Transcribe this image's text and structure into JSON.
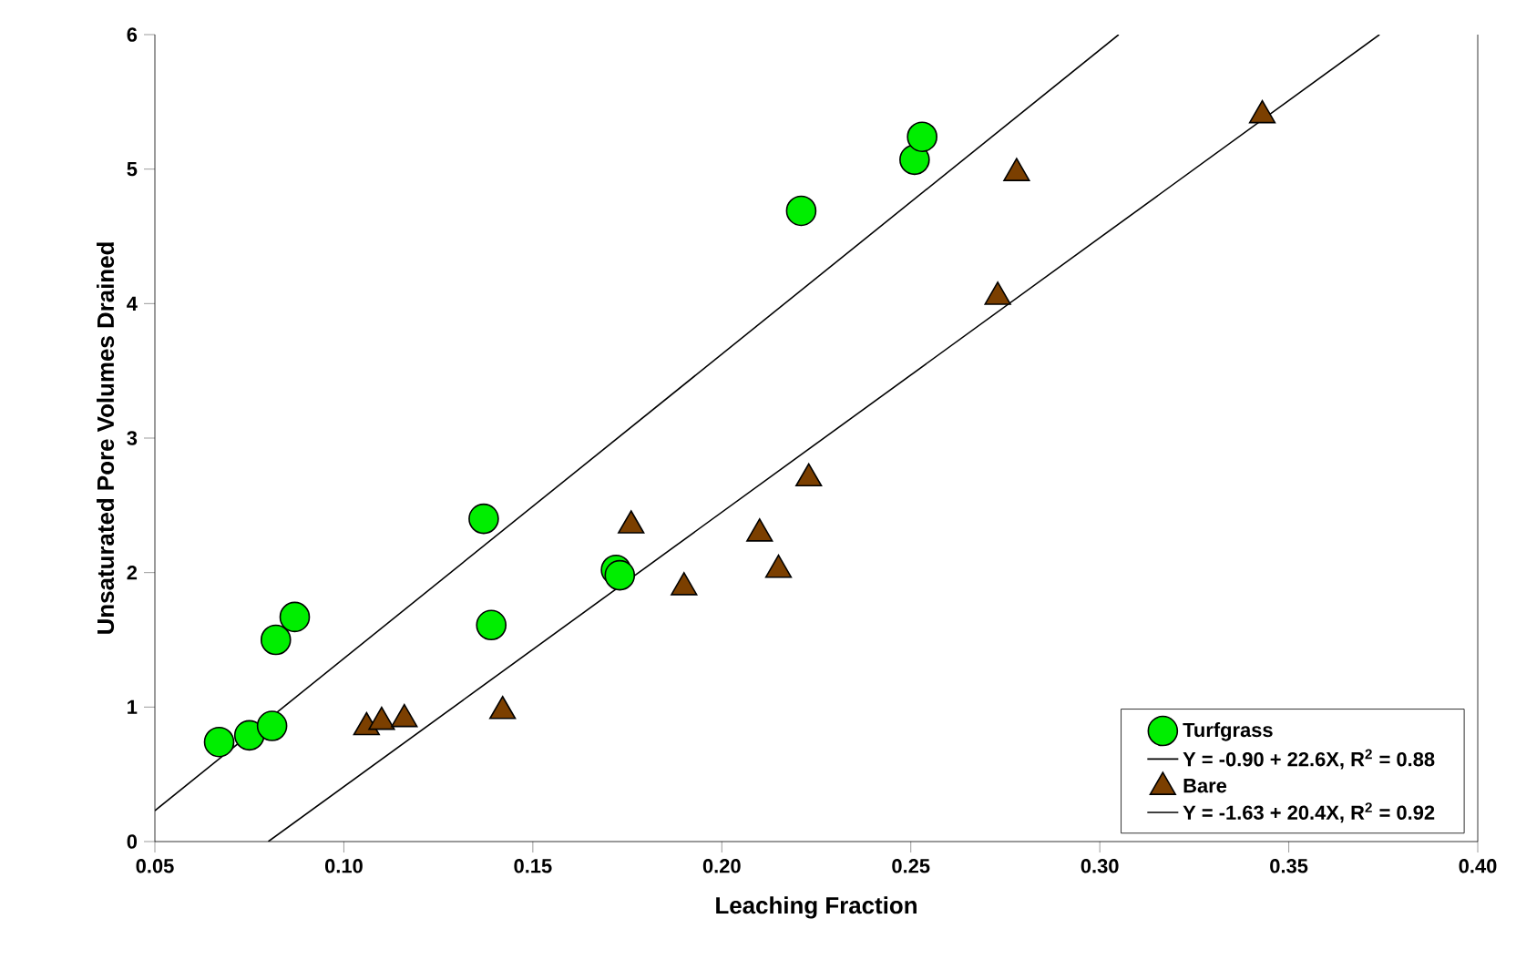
{
  "chart_data": {
    "type": "scatter",
    "xlabel": "Leaching Fraction",
    "ylabel": "Unsaturated Pore Volumes Drained",
    "xlim": [
      0.05,
      0.4
    ],
    "ylim": [
      0,
      6
    ],
    "xticks": [
      {
        "value": 0.05,
        "label": "0.05"
      },
      {
        "value": 0.1,
        "label": "0.10"
      },
      {
        "value": 0.15,
        "label": "0.15"
      },
      {
        "value": 0.2,
        "label": "0.20"
      },
      {
        "value": 0.25,
        "label": "0.25"
      },
      {
        "value": 0.3,
        "label": "0.30"
      },
      {
        "value": 0.35,
        "label": "0.35"
      },
      {
        "value": 0.4,
        "label": "0.40"
      }
    ],
    "yticks": [
      0,
      1,
      2,
      3,
      4,
      5,
      6
    ],
    "grid": false,
    "legend": "bottom right",
    "series": [
      {
        "name": "Turfgrass",
        "marker": "circle",
        "color": "#00ee00",
        "x": [
          0.067,
          0.075,
          0.081,
          0.082,
          0.087,
          0.139,
          0.137,
          0.172,
          0.173,
          0.221,
          0.251,
          0.253
        ],
        "values": [
          0.74,
          0.79,
          0.86,
          1.5,
          1.67,
          1.61,
          2.4,
          2.02,
          1.98,
          4.69,
          5.07,
          5.24
        ]
      },
      {
        "name": "Y = -0.90 + 22.6X, R$^{2}$ = 0.88",
        "type": "line",
        "marker": "none",
        "color": "#000000",
        "x": [
          0.05,
          0.305
        ],
        "values": [
          0.23,
          6.0
        ]
      },
      {
        "name": "Bare",
        "marker": "triangle",
        "color": "#7b3f00",
        "x": [
          0.106,
          0.11,
          0.116,
          0.142,
          0.176,
          0.19,
          0.21,
          0.215,
          0.223,
          0.273,
          0.278,
          0.343
        ],
        "values": [
          0.85,
          0.89,
          0.91,
          0.97,
          2.35,
          1.89,
          2.29,
          2.02,
          2.7,
          4.05,
          4.97,
          5.4
        ]
      },
      {
        "name": "Y = -1.63 + 20.4X, R$^{2}$ = 0.92",
        "type": "line",
        "marker": "none",
        "color": "#000000",
        "x": [
          0.08,
          0.374
        ],
        "values": [
          0.0,
          6.0
        ]
      }
    ]
  }
}
